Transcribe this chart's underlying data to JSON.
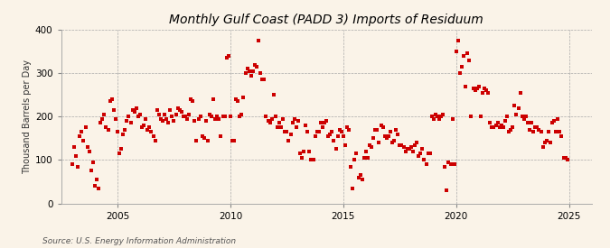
{
  "title": "Monthly Gulf Coast (PADD 3) Imports of Residuum",
  "ylabel": "Thousand Barrels per Day",
  "source": "Source: U.S. Energy Information Administration",
  "bg_color": "#faf3e8",
  "marker_color": "#cc0000",
  "xlim": [
    2002.5,
    2026.0
  ],
  "ylim": [
    0,
    400
  ],
  "yticks": [
    0,
    100,
    200,
    300,
    400
  ],
  "xticks": [
    2005,
    2010,
    2015,
    2020,
    2025
  ],
  "dates": [
    2003.0,
    2003.083,
    2003.167,
    2003.25,
    2003.333,
    2003.417,
    2003.5,
    2003.583,
    2003.667,
    2003.75,
    2003.833,
    2003.917,
    2004.0,
    2004.083,
    2004.167,
    2004.25,
    2004.333,
    2004.417,
    2004.5,
    2004.583,
    2004.667,
    2004.75,
    2004.833,
    2004.917,
    2005.0,
    2005.083,
    2005.167,
    2005.25,
    2005.333,
    2005.417,
    2005.5,
    2005.583,
    2005.667,
    2005.75,
    2005.833,
    2005.917,
    2006.0,
    2006.083,
    2006.167,
    2006.25,
    2006.333,
    2006.417,
    2006.5,
    2006.583,
    2006.667,
    2006.75,
    2006.833,
    2006.917,
    2007.0,
    2007.083,
    2007.167,
    2007.25,
    2007.333,
    2007.417,
    2007.5,
    2007.583,
    2007.667,
    2007.75,
    2007.833,
    2007.917,
    2008.0,
    2008.083,
    2008.167,
    2008.25,
    2008.333,
    2008.417,
    2008.5,
    2008.583,
    2008.667,
    2008.75,
    2008.833,
    2008.917,
    2009.0,
    2009.083,
    2009.167,
    2009.25,
    2009.333,
    2009.417,
    2009.5,
    2009.583,
    2009.667,
    2009.75,
    2009.833,
    2009.917,
    2010.0,
    2010.083,
    2010.167,
    2010.25,
    2010.333,
    2010.417,
    2010.5,
    2010.583,
    2010.667,
    2010.75,
    2010.833,
    2010.917,
    2011.0,
    2011.083,
    2011.167,
    2011.25,
    2011.333,
    2011.417,
    2011.5,
    2011.583,
    2011.667,
    2011.75,
    2011.833,
    2011.917,
    2012.0,
    2012.083,
    2012.167,
    2012.25,
    2012.333,
    2012.417,
    2012.5,
    2012.583,
    2012.667,
    2012.75,
    2012.833,
    2012.917,
    2013.0,
    2013.083,
    2013.167,
    2013.25,
    2013.333,
    2013.417,
    2013.5,
    2013.583,
    2013.667,
    2013.75,
    2013.833,
    2013.917,
    2014.0,
    2014.083,
    2014.167,
    2014.25,
    2014.333,
    2014.417,
    2014.5,
    2014.583,
    2014.667,
    2014.75,
    2014.833,
    2014.917,
    2015.0,
    2015.083,
    2015.167,
    2015.25,
    2015.333,
    2015.417,
    2015.5,
    2015.583,
    2015.667,
    2015.75,
    2015.833,
    2015.917,
    2016.0,
    2016.083,
    2016.167,
    2016.25,
    2016.333,
    2016.417,
    2016.5,
    2016.583,
    2016.667,
    2016.75,
    2016.833,
    2016.917,
    2017.0,
    2017.083,
    2017.167,
    2017.25,
    2017.333,
    2017.417,
    2017.5,
    2017.583,
    2017.667,
    2017.75,
    2017.833,
    2017.917,
    2018.0,
    2018.083,
    2018.167,
    2018.25,
    2018.333,
    2018.417,
    2018.5,
    2018.583,
    2018.667,
    2018.75,
    2018.833,
    2018.917,
    2019.0,
    2019.083,
    2019.167,
    2019.25,
    2019.333,
    2019.417,
    2019.5,
    2019.583,
    2019.667,
    2019.75,
    2019.833,
    2019.917,
    2020.0,
    2020.083,
    2020.167,
    2020.25,
    2020.333,
    2020.417,
    2020.5,
    2020.583,
    2020.667,
    2020.75,
    2020.833,
    2020.917,
    2021.0,
    2021.083,
    2021.167,
    2021.25,
    2021.333,
    2021.417,
    2021.5,
    2021.583,
    2021.667,
    2021.75,
    2021.833,
    2021.917,
    2022.0,
    2022.083,
    2022.167,
    2022.25,
    2022.333,
    2022.417,
    2022.5,
    2022.583,
    2022.667,
    2022.75,
    2022.833,
    2022.917,
    2023.0,
    2023.083,
    2023.167,
    2023.25,
    2023.333,
    2023.417,
    2023.5,
    2023.583,
    2023.667,
    2023.75,
    2023.833,
    2023.917,
    2024.0,
    2024.083,
    2024.167,
    2024.25,
    2024.333,
    2024.417,
    2024.5,
    2024.583,
    2024.667,
    2024.75,
    2024.833,
    2024.917
  ],
  "values": [
    90,
    130,
    110,
    85,
    155,
    165,
    145,
    175,
    130,
    120,
    75,
    95,
    40,
    55,
    35,
    185,
    195,
    205,
    175,
    170,
    235,
    240,
    215,
    195,
    165,
    115,
    125,
    160,
    170,
    190,
    200,
    185,
    215,
    210,
    220,
    200,
    205,
    175,
    180,
    195,
    170,
    175,
    165,
    155,
    145,
    215,
    205,
    195,
    190,
    205,
    195,
    185,
    215,
    200,
    190,
    205,
    220,
    215,
    210,
    200,
    200,
    195,
    205,
    240,
    235,
    190,
    145,
    195,
    200,
    155,
    150,
    190,
    145,
    205,
    200,
    240,
    195,
    200,
    195,
    155,
    200,
    200,
    335,
    340,
    200,
    145,
    145,
    240,
    235,
    200,
    205,
    245,
    300,
    310,
    305,
    295,
    305,
    320,
    315,
    375,
    300,
    285,
    285,
    200,
    190,
    185,
    195,
    250,
    200,
    175,
    185,
    175,
    195,
    165,
    165,
    145,
    160,
    185,
    195,
    175,
    190,
    115,
    105,
    120,
    180,
    165,
    120,
    100,
    100,
    155,
    165,
    165,
    185,
    175,
    185,
    190,
    155,
    160,
    165,
    145,
    125,
    155,
    170,
    165,
    155,
    135,
    175,
    170,
    85,
    35,
    100,
    115,
    60,
    65,
    55,
    105,
    120,
    105,
    135,
    130,
    150,
    170,
    170,
    140,
    180,
    175,
    155,
    150,
    155,
    165,
    140,
    145,
    170,
    160,
    135,
    135,
    130,
    120,
    125,
    125,
    130,
    120,
    135,
    140,
    110,
    115,
    125,
    100,
    90,
    115,
    115,
    200,
    195,
    205,
    200,
    195,
    200,
    205,
    85,
    30,
    95,
    90,
    195,
    90,
    350,
    375,
    300,
    315,
    340,
    270,
    345,
    330,
    200,
    265,
    260,
    265,
    270,
    200,
    255,
    265,
    260,
    255,
    185,
    175,
    175,
    180,
    185,
    175,
    180,
    175,
    190,
    200,
    165,
    170,
    175,
    225,
    205,
    220,
    255,
    200,
    195,
    200,
    185,
    170,
    185,
    165,
    175,
    175,
    170,
    165,
    130,
    140,
    145,
    165,
    140,
    185,
    190,
    165,
    195,
    165,
    155,
    105,
    105,
    100
  ],
  "title_fontsize": 10,
  "ylabel_fontsize": 7,
  "tick_fontsize": 7.5,
  "source_fontsize": 6.5,
  "marker_size": 6
}
